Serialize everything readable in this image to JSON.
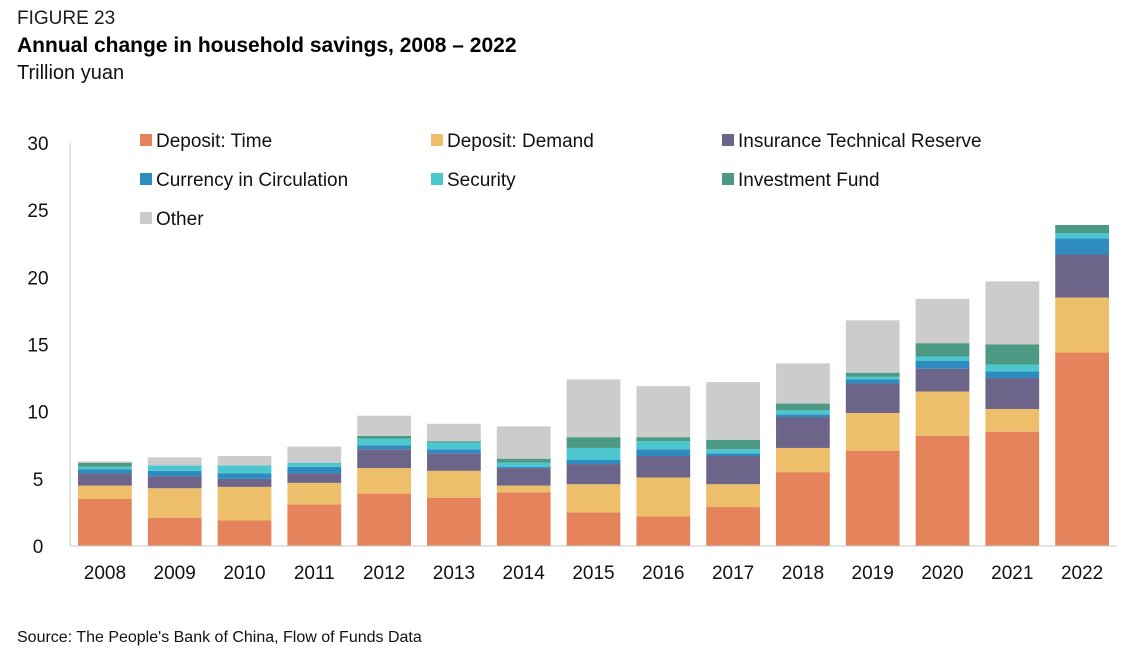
{
  "figure_label": "FIGURE 23",
  "title": "Annual change in household savings, 2008 – 2022",
  "subtitle": "Trillion yuan",
  "source": "Source: The People's Bank of China, Flow of Funds Data",
  "chart_data": {
    "type": "bar",
    "stacked": true,
    "categories": [
      "2008",
      "2009",
      "2010",
      "2011",
      "2012",
      "2013",
      "2014",
      "2015",
      "2016",
      "2017",
      "2018",
      "2019",
      "2020",
      "2021",
      "2022"
    ],
    "ylim": [
      0,
      30
    ],
    "yticks": [
      0,
      5,
      10,
      15,
      20,
      25,
      30
    ],
    "ytick_labels": [
      "0",
      "5",
      "10",
      "15",
      "20",
      "25",
      "30"
    ],
    "grid": false,
    "legend_position": "top-left",
    "series": [
      {
        "name": "Deposit: Time",
        "color": "#E5845C",
        "values": [
          3.5,
          2.1,
          1.9,
          3.1,
          3.9,
          3.6,
          4.0,
          2.5,
          2.2,
          2.9,
          5.5,
          7.1,
          8.2,
          8.5,
          14.4
        ]
      },
      {
        "name": "Deposit: Demand",
        "color": "#EDBF6A",
        "values": [
          1.0,
          2.2,
          2.5,
          1.6,
          1.9,
          2.0,
          0.5,
          2.1,
          2.9,
          1.7,
          1.8,
          2.8,
          3.3,
          1.7,
          4.1
        ]
      },
      {
        "name": "Insurance Technical Reserve",
        "color": "#6C6589",
        "values": [
          0.9,
          0.9,
          0.6,
          0.7,
          1.4,
          1.3,
          1.3,
          1.5,
          1.6,
          2.1,
          2.3,
          2.2,
          1.7,
          2.3,
          3.2
        ]
      },
      {
        "name": "Currency in Circulation",
        "color": "#2E8BC0",
        "values": [
          0.3,
          0.4,
          0.4,
          0.5,
          0.3,
          0.3,
          0.1,
          0.3,
          0.5,
          0.2,
          0.2,
          0.3,
          0.6,
          0.5,
          1.2
        ]
      },
      {
        "name": "Security",
        "color": "#4CC7CF",
        "values": [
          0.2,
          0.4,
          0.6,
          0.3,
          0.5,
          0.5,
          0.3,
          0.9,
          0.6,
          0.3,
          0.3,
          0.2,
          0.3,
          0.5,
          0.4
        ]
      },
      {
        "name": "Investment Fund",
        "color": "#4C9A84",
        "values": [
          0.3,
          0.0,
          0.0,
          0.0,
          0.2,
          0.1,
          0.3,
          0.8,
          0.3,
          0.7,
          0.5,
          0.3,
          1.0,
          1.5,
          0.6
        ]
      },
      {
        "name": "Other",
        "color": "#CCCCCC",
        "values": [
          0.1,
          0.6,
          0.7,
          1.2,
          1.5,
          1.3,
          2.4,
          4.3,
          3.8,
          4.3,
          3.0,
          3.9,
          3.3,
          4.7,
          0.0
        ]
      }
    ]
  }
}
